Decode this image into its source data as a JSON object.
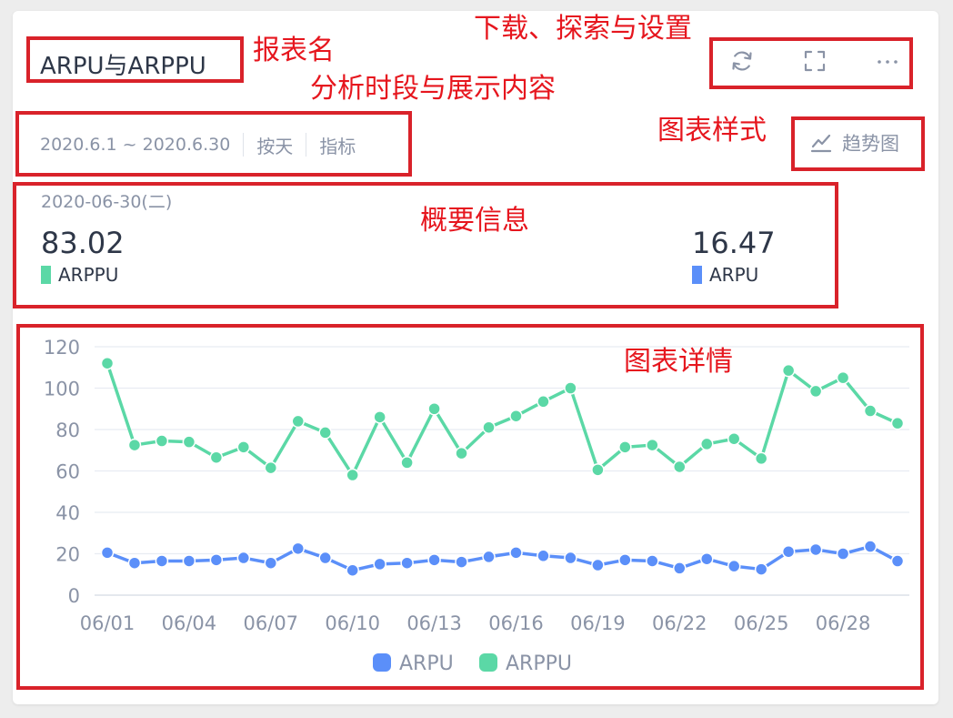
{
  "report": {
    "name": "ARPU与ARPPU"
  },
  "toolbar": {
    "refresh_icon": "refresh-icon",
    "fullscreen_icon": "fullscreen-icon",
    "more_icon": "more-icon",
    "more_label": "···"
  },
  "filters": {
    "date_range": "2020.6.1 ~ 2020.6.30",
    "granularity": "按天",
    "metrics": "指标"
  },
  "chart_style": {
    "label": "趋势图",
    "icon": "trend-icon"
  },
  "summary": {
    "date": "2020-06-30(二)",
    "items": [
      {
        "value": "83.02",
        "label": "ARPPU",
        "color": "#5bd8a6"
      },
      {
        "value": "16.47",
        "label": "ARPU",
        "color": "#5b8ff9"
      }
    ]
  },
  "annotations": {
    "report_name": "报表名",
    "download": "下载、探索与设置",
    "period": "分析时段与展示内容",
    "chart_style": "图表样式",
    "summary": "概要信息",
    "chart_detail": "图表详情"
  },
  "chart_data": {
    "type": "line",
    "x": [
      "06/01",
      "06/02",
      "06/03",
      "06/04",
      "06/05",
      "06/06",
      "06/07",
      "06/08",
      "06/09",
      "06/10",
      "06/11",
      "06/12",
      "06/13",
      "06/14",
      "06/15",
      "06/16",
      "06/17",
      "06/18",
      "06/19",
      "06/20",
      "06/21",
      "06/22",
      "06/23",
      "06/24",
      "06/25",
      "06/26",
      "06/27",
      "06/28",
      "06/29",
      "06/30"
    ],
    "x_tick_labels": [
      "06/01",
      "06/04",
      "06/07",
      "06/10",
      "06/13",
      "06/16",
      "06/19",
      "06/22",
      "06/25",
      "06/28"
    ],
    "ylim": [
      0,
      120
    ],
    "yticks": [
      0,
      20,
      40,
      60,
      80,
      100,
      120
    ],
    "grid": true,
    "legend_position": "bottom",
    "series": [
      {
        "name": "ARPU",
        "color": "#5b8ff9",
        "values": [
          20.5,
          15.5,
          16.5,
          16.5,
          17,
          18,
          15.5,
          22.5,
          18,
          12,
          15,
          15.5,
          17,
          16,
          18.5,
          20.5,
          19,
          18,
          14.5,
          17,
          16.5,
          13,
          17.5,
          14,
          12.5,
          21,
          22,
          20,
          23.5,
          16.47
        ]
      },
      {
        "name": "ARPPU",
        "color": "#5bd8a6",
        "values": [
          112,
          72.5,
          74.5,
          74,
          66.5,
          71.5,
          61.5,
          84,
          78.5,
          58,
          86,
          64,
          90,
          68.5,
          81,
          86.5,
          93.5,
          100,
          60.5,
          71.5,
          72.5,
          62,
          73,
          75.5,
          66,
          108.5,
          98.5,
          105,
          89,
          83.02
        ]
      }
    ]
  }
}
